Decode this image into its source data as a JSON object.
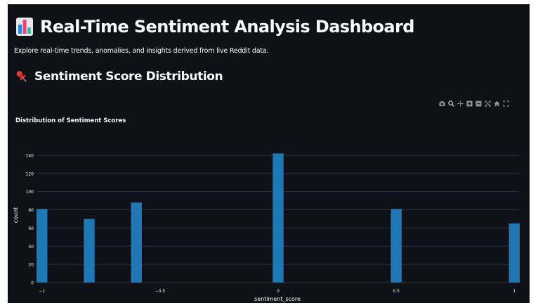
{
  "header": {
    "title": "Real-Time Sentiment Analysis Dashboard",
    "subtitle": "Explore real-time trends, anomalies, and insights derived from live Reddit data.",
    "icon": "bar-chart-icon"
  },
  "section": {
    "title": "Sentiment Score Distribution",
    "icon": "pushpin-icon"
  },
  "modebar": {
    "buttons": [
      "camera-icon",
      "zoom-icon",
      "pan-icon",
      "zoom-in-icon",
      "zoom-out-icon",
      "autoscale-icon",
      "home-icon",
      "fullscreen-icon"
    ]
  },
  "colors": {
    "background": "#0e1117",
    "bar": "#1f77b4",
    "text": "#fafafa",
    "grid": "#283442"
  },
  "chart_data": {
    "type": "bar",
    "title": "Distribution of Sentiment Scores",
    "xlabel": "sentiment_score",
    "ylabel": "count",
    "x": [
      -1,
      -0.8,
      -0.6,
      0,
      0.5,
      1
    ],
    "values": [
      81,
      70,
      88,
      142,
      81,
      65
    ],
    "xlim": [
      -1.02,
      1.02
    ],
    "ylim": [
      0,
      150
    ],
    "xticks": [
      -1,
      -0.5,
      0,
      0.5,
      1
    ],
    "xtick_labels": [
      "−1",
      "−0.5",
      "0",
      "0.5",
      "1"
    ],
    "yticks": [
      0,
      20,
      40,
      60,
      80,
      100,
      120,
      140
    ],
    "ytick_labels": [
      "0",
      "20",
      "40",
      "60",
      "80",
      "100",
      "120",
      "140"
    ],
    "grid": true,
    "bar_color": "#1f77b4"
  }
}
